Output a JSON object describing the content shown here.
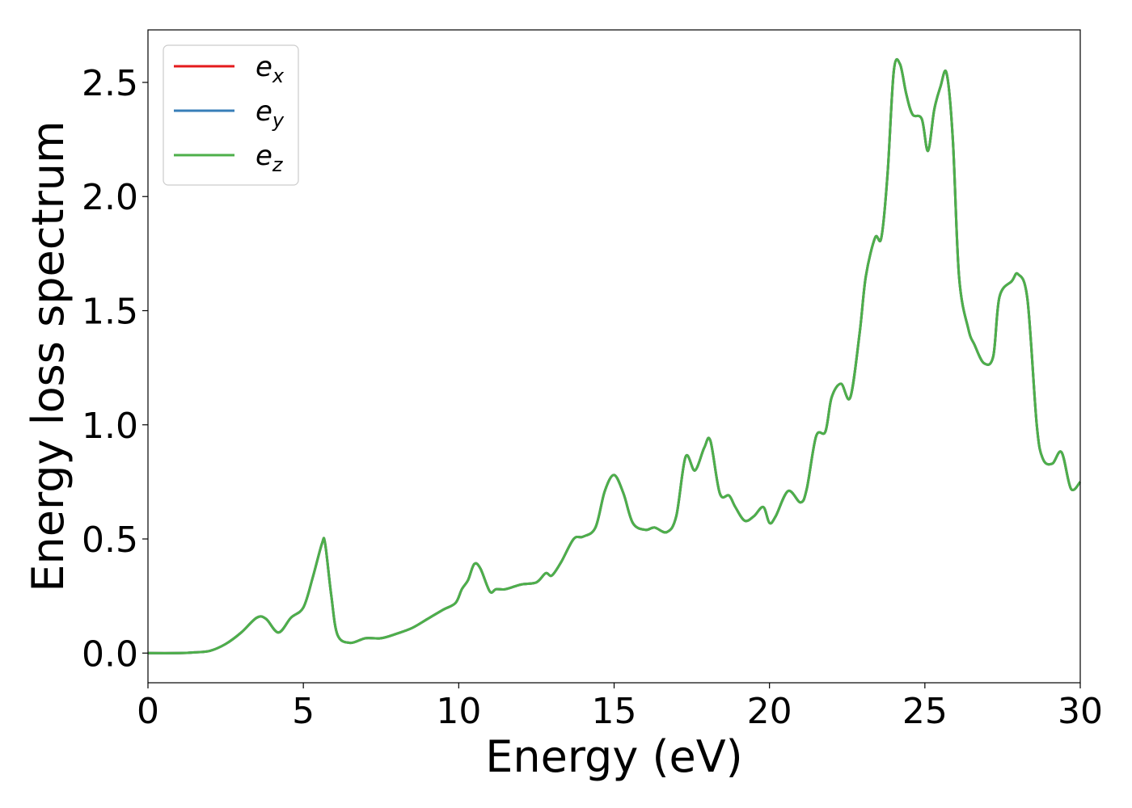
{
  "chart_data": {
    "type": "line",
    "xlabel": "Energy (eV)",
    "ylabel": "Energy loss spectrum",
    "xlim": [
      0,
      30
    ],
    "ylim": [
      -0.13,
      2.73
    ],
    "xticks": [
      0,
      5,
      10,
      15,
      20,
      25,
      30
    ],
    "xtick_labels": [
      "0",
      "5",
      "10",
      "15",
      "20",
      "25",
      "30"
    ],
    "yticks": [
      0.0,
      0.5,
      1.0,
      1.5,
      2.0,
      2.5
    ],
    "ytick_labels": [
      "0.0",
      "0.5",
      "1.0",
      "1.5",
      "2.0",
      "2.5"
    ],
    "grid": false,
    "legend_position": "top-left",
    "series": [
      {
        "name": "e",
        "subscript": "x",
        "color": "#e41a1c"
      },
      {
        "name": "e",
        "subscript": "y",
        "color": "#377eb8"
      },
      {
        "name": "e",
        "subscript": "z",
        "color": "#4daf4a"
      }
    ],
    "x": [
      0,
      1,
      1.5,
      2,
      2.5,
      3,
      3.5,
      3.8,
      4.2,
      4.6,
      5.0,
      5.3,
      5.6,
      5.7,
      5.9,
      6.1,
      6.5,
      7.0,
      7.5,
      8.0,
      8.5,
      9.0,
      9.5,
      9.9,
      10.1,
      10.3,
      10.5,
      10.7,
      11.0,
      11.2,
      11.5,
      12.0,
      12.5,
      12.8,
      13.0,
      13.3,
      13.7,
      14.0,
      14.4,
      14.7,
      15.0,
      15.3,
      15.6,
      16.0,
      16.3,
      16.7,
      17.0,
      17.3,
      17.6,
      17.9,
      18.1,
      18.4,
      18.7,
      18.9,
      19.2,
      19.5,
      19.8,
      20.0,
      20.2,
      20.6,
      21.0,
      21.2,
      21.5,
      21.8,
      22.0,
      22.3,
      22.6,
      22.9,
      23.1,
      23.4,
      23.6,
      23.8,
      24.0,
      24.2,
      24.4,
      24.6,
      24.9,
      25.1,
      25.3,
      25.5,
      25.7,
      25.9,
      26.1,
      26.4,
      26.6,
      26.9,
      27.2,
      27.4,
      27.8,
      28.0,
      28.3,
      28.6,
      28.8,
      29.1,
      29.4,
      29.7,
      30.0
    ],
    "values": [
      0.0,
      0.0,
      0.003,
      0.01,
      0.04,
      0.09,
      0.155,
      0.15,
      0.09,
      0.155,
      0.2,
      0.33,
      0.48,
      0.48,
      0.25,
      0.08,
      0.045,
      0.065,
      0.065,
      0.085,
      0.11,
      0.15,
      0.19,
      0.22,
      0.28,
      0.32,
      0.39,
      0.37,
      0.27,
      0.28,
      0.28,
      0.3,
      0.31,
      0.35,
      0.34,
      0.4,
      0.5,
      0.51,
      0.55,
      0.71,
      0.78,
      0.7,
      0.57,
      0.54,
      0.55,
      0.53,
      0.6,
      0.86,
      0.8,
      0.9,
      0.93,
      0.7,
      0.69,
      0.64,
      0.58,
      0.6,
      0.64,
      0.57,
      0.6,
      0.71,
      0.66,
      0.72,
      0.95,
      0.97,
      1.12,
      1.18,
      1.12,
      1.4,
      1.65,
      1.82,
      1.82,
      2.1,
      2.55,
      2.58,
      2.45,
      2.36,
      2.34,
      2.2,
      2.38,
      2.48,
      2.54,
      2.25,
      1.65,
      1.42,
      1.35,
      1.27,
      1.3,
      1.56,
      1.63,
      1.66,
      1.55,
      1.0,
      0.85,
      0.83,
      0.88,
      0.72,
      0.75
    ]
  }
}
